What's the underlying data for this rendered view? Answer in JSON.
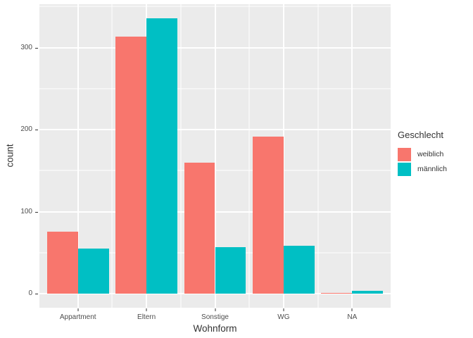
{
  "chart_data": {
    "type": "bar",
    "mode": "dodged",
    "title": "",
    "xlabel": "Wohnform",
    "ylabel": "count",
    "categories": [
      "Appartment",
      "Eltern",
      "Sonstige",
      "WG",
      "NA"
    ],
    "series": [
      {
        "name": "weiblich",
        "color": "#F8766D",
        "values": [
          76,
          313,
          160,
          192,
          1
        ]
      },
      {
        "name": "männlich",
        "color": "#00BFC4",
        "values": [
          55,
          336,
          57,
          59,
          4
        ]
      }
    ],
    "legend": {
      "title": "Geschlecht",
      "position": "right"
    },
    "y_axis": {
      "major_ticks": [
        0,
        100,
        200,
        300
      ],
      "minor_ticks": [
        50,
        150,
        250,
        350
      ],
      "range": [
        -16.8,
        352.8
      ]
    },
    "layout": {
      "grid": "on",
      "bar_group_fill": 0.9,
      "side_padding_pct": 1.2
    },
    "colors": {
      "panel_bg": "#EBEBEB",
      "grid": "#FFFFFF",
      "tick_text": "#4D4D4D",
      "axis_title": "#333333",
      "legend_text": "#333333",
      "tick_mark": "#333333"
    }
  }
}
